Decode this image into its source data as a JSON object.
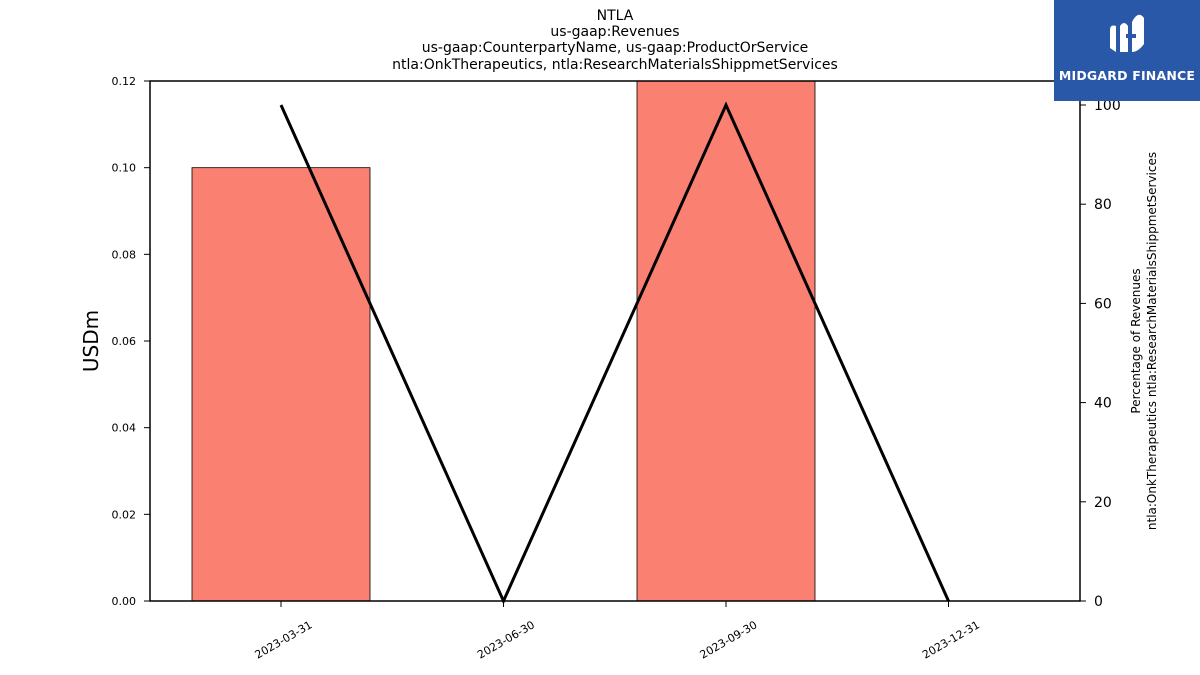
{
  "chart_data": {
    "type": "bar",
    "title_lines": [
      "NTLA",
      "us-gaap:Revenues",
      "us-gaap:CounterpartyName, us-gaap:ProductOrService",
      "ntla:OnkTherapeutics, ntla:ResearchMaterialsShippmetServices"
    ],
    "categories": [
      "2023-03-31",
      "2023-06-30",
      "2023-09-30",
      "2023-12-31"
    ],
    "bar_series": {
      "values": [
        0.1,
        0,
        0.12,
        0
      ],
      "color": "#fa8072"
    },
    "line_series": {
      "values": [
        100,
        0,
        100,
        0
      ],
      "color": "#000000"
    },
    "ylabel_left": "USDm",
    "ylabel_right_lines": [
      "Percentage of Revenues",
      "ntla:OnkTherapeutics ntla:ResearchMaterialsShippmetServices"
    ],
    "ylim_left": [
      0,
      0.12
    ],
    "yticks_left": [
      "0.00",
      "0.02",
      "0.04",
      "0.06",
      "0.08",
      "0.10",
      "0.12"
    ],
    "ylim_right": [
      0,
      100
    ],
    "yticks_right": [
      "0",
      "20",
      "40",
      "60",
      "80",
      "100"
    ],
    "grid": false
  },
  "logo": {
    "text": "MIDGARD FINANCE",
    "background": "#2a58a8"
  }
}
